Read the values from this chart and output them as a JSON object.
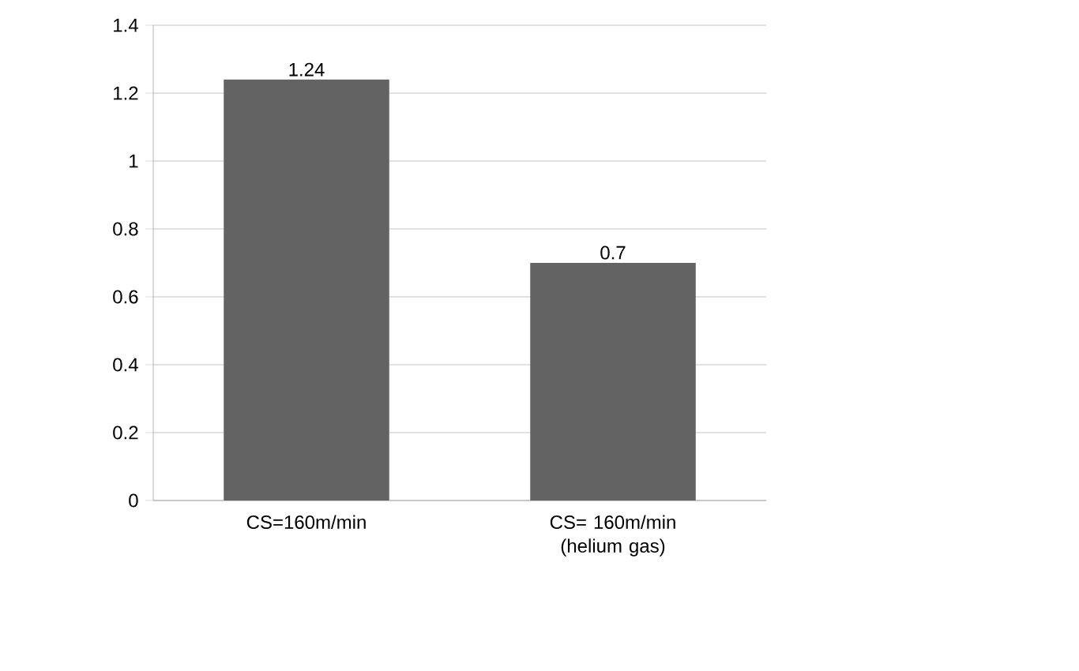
{
  "chart_data": {
    "type": "bar",
    "categories": [
      "CS=160m/min",
      "CS= 160m/min (helium gas)"
    ],
    "values": [
      1.24,
      0.7
    ],
    "color": "#636363",
    "ylim": [
      0,
      1.4
    ],
    "yticks": [
      0,
      0.2,
      0.4,
      0.6,
      0.8,
      1,
      1.2,
      1.4
    ],
    "grid": "y",
    "data_labels": true
  }
}
